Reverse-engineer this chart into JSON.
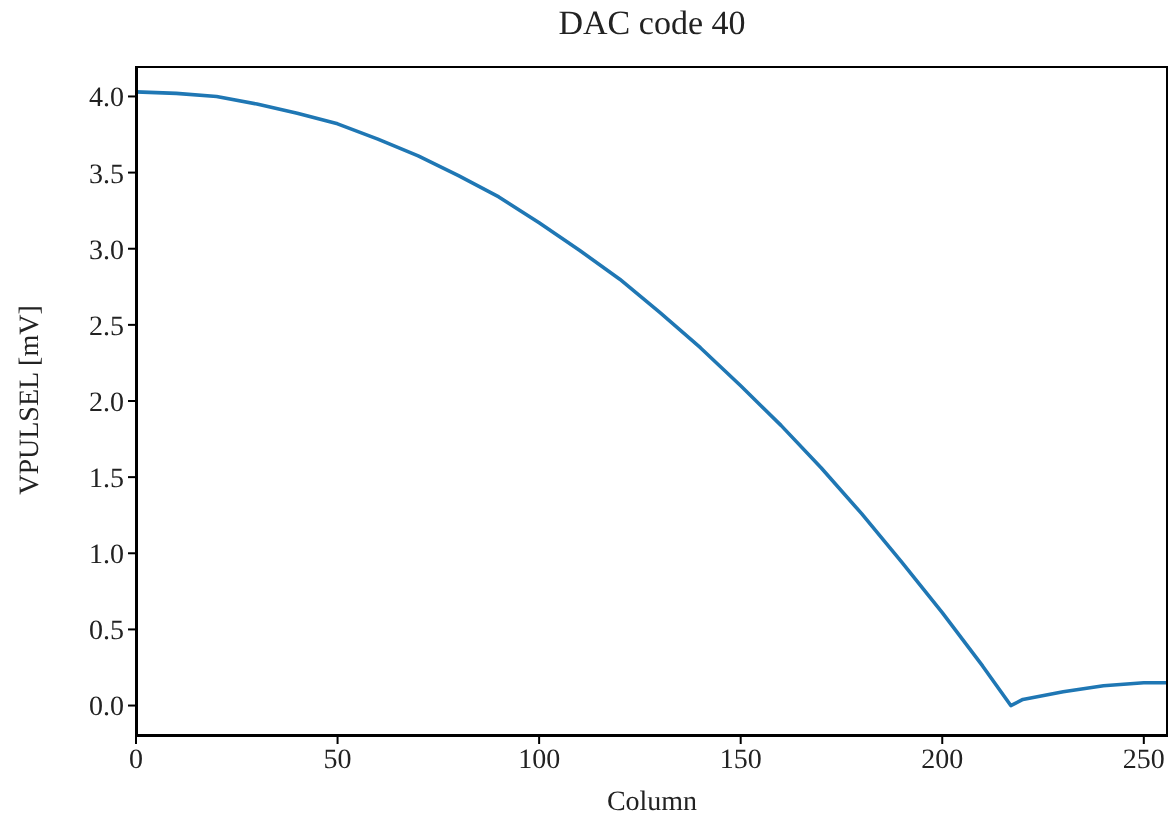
{
  "chart_data": {
    "type": "line",
    "title": "DAC code 40",
    "xlabel": "Column",
    "ylabel": "VPULSEL [mV]",
    "x": [
      0,
      10,
      20,
      30,
      40,
      50,
      60,
      70,
      80,
      90,
      100,
      110,
      120,
      130,
      140,
      150,
      160,
      170,
      180,
      190,
      200,
      210,
      217,
      220,
      230,
      240,
      250,
      256
    ],
    "series": [
      {
        "color": "#1f77b4",
        "values": [
          4.03,
          4.02,
          4.0,
          3.95,
          3.89,
          3.82,
          3.72,
          3.61,
          3.48,
          3.34,
          3.17,
          2.99,
          2.8,
          2.58,
          2.35,
          2.1,
          1.84,
          1.56,
          1.26,
          0.94,
          0.61,
          0.26,
          0.0,
          0.04,
          0.09,
          0.13,
          0.15,
          0.15
        ]
      }
    ],
    "xlim": [
      0,
      256
    ],
    "xticks": [
      0,
      50,
      100,
      150,
      200,
      250
    ],
    "ylim": [
      -0.2,
      4.2
    ],
    "yticks": [
      {
        "value": 0,
        "label": "0.0"
      },
      {
        "value": 0.5,
        "label": "0.5"
      },
      {
        "value": 1,
        "label": "1.0"
      },
      {
        "value": 1.5,
        "label": "1.5"
      },
      {
        "value": 2,
        "label": "2.0"
      },
      {
        "value": 2.5,
        "label": "2.5"
      },
      {
        "value": 3,
        "label": "3.0"
      },
      {
        "value": 3.5,
        "label": "3.5"
      },
      {
        "value": 4,
        "label": "4.0"
      }
    ],
    "grid": false,
    "legend": false,
    "marker": "none",
    "line_style": "solid"
  }
}
